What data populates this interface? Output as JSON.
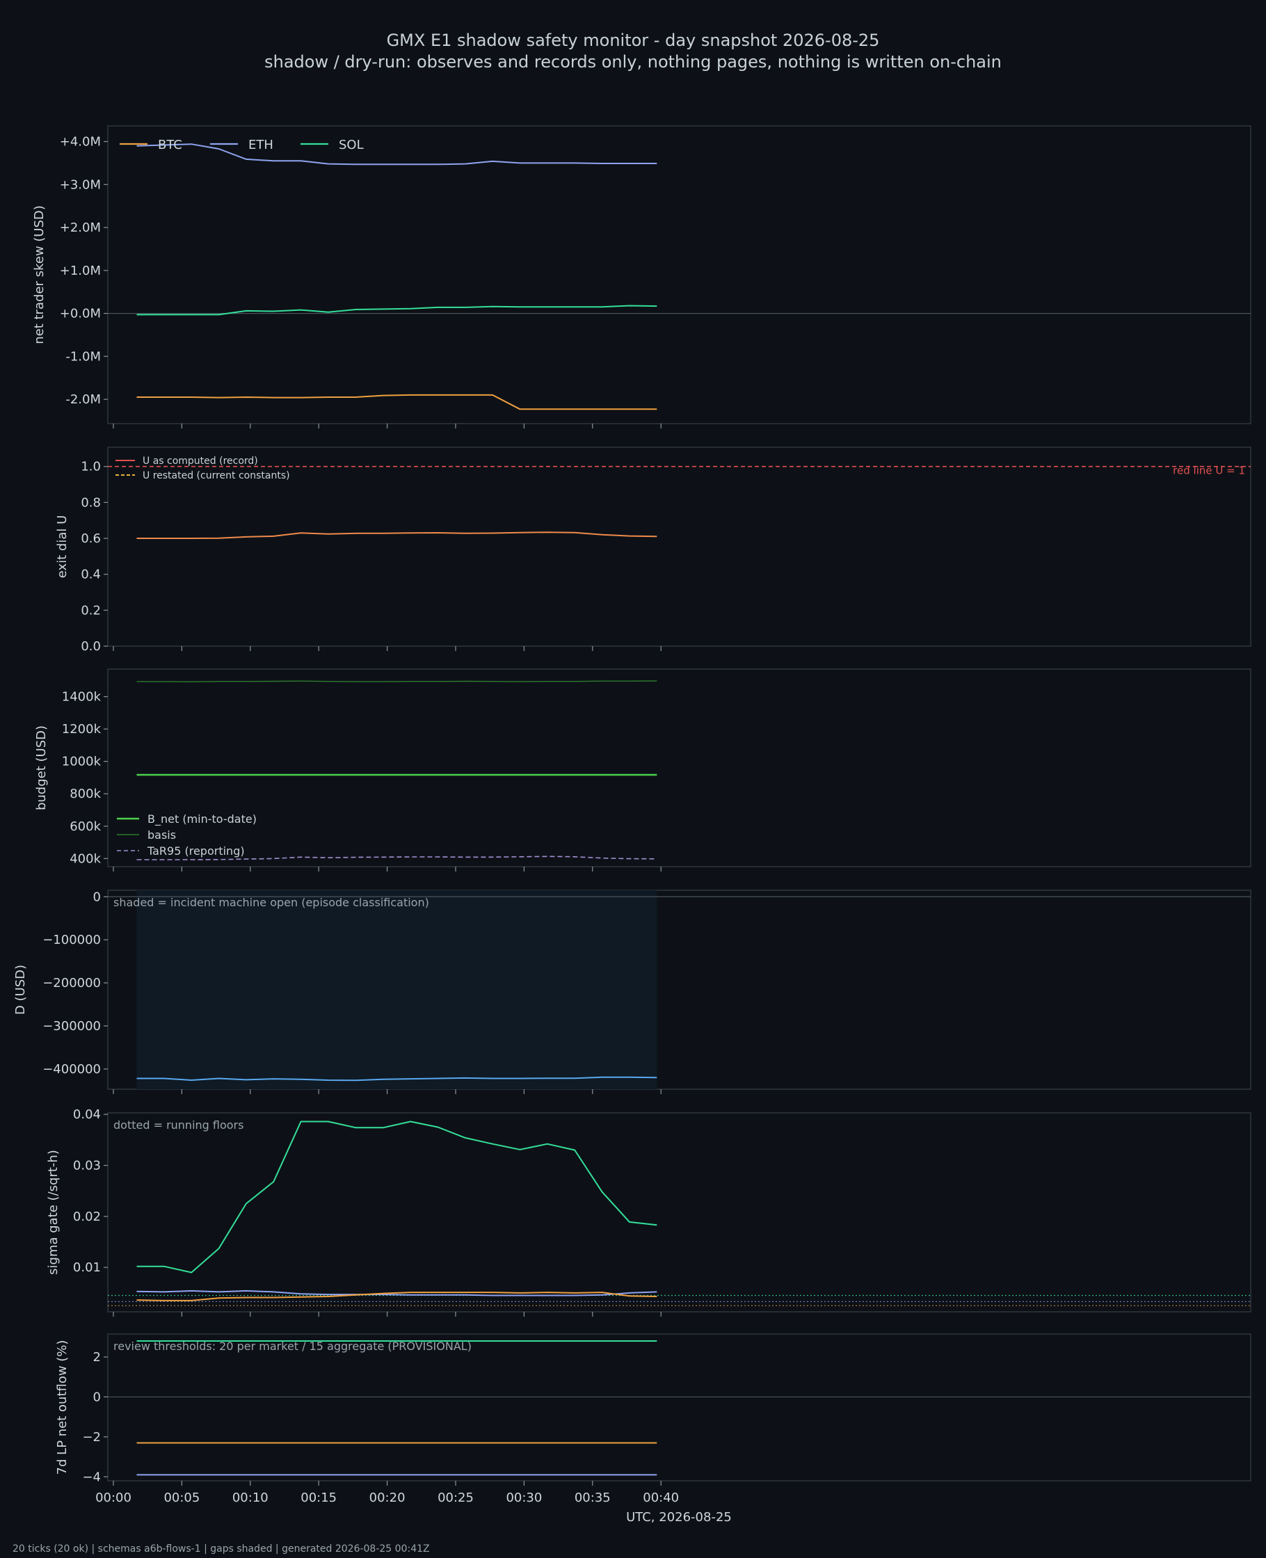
{
  "title": "GMX E1 shadow safety monitor - day snapshot 2026-08-25",
  "subtitle": "shadow / dry-run: observes and records only, nothing pages, nothing is written on-chain",
  "footer": "20 ticks (20 ok) | schemas a6b-flows-1 | gaps shaded | generated 2026-08-25 00:41Z",
  "colors": {
    "background": "#0d1117",
    "panel_border": "#30363d",
    "btc": "#f0a040",
    "eth": "#8fa4f0",
    "sol": "#35e09a",
    "u_record": "#e15050",
    "u_restated": "#e5b53a",
    "u_line": "#f08a4b",
    "b_net": "#4cd14c",
    "basis": "#2f7a2f",
    "tar95": "#a58fd6",
    "d_line": "#5aa8f0",
    "incident_shade": "#0f1a24"
  },
  "chart_data": [
    {
      "type": "line",
      "ylabel": "net trader skew (USD)",
      "ylim": [
        -2.5,
        4.3
      ],
      "yticks": [
        4,
        3,
        2,
        1,
        0,
        -1,
        -2
      ],
      "ytick_labels": [
        "+4.0M",
        "+3.0M",
        "+2.0M",
        "+1.0M",
        "+0.0M",
        "-1.0M",
        "-2.0M"
      ],
      "zero_line": true,
      "legend": "top-left",
      "x_minutes": [
        1.7,
        3.7,
        5.7,
        7.7,
        9.7,
        11.7,
        13.7,
        15.7,
        17.7,
        19.7,
        21.7,
        23.7,
        25.7,
        27.7,
        29.7,
        31.7,
        33.7,
        35.7,
        37.7,
        39.7
      ],
      "series": [
        {
          "name": "BTC",
          "color": "#f0a040",
          "style": "solid",
          "values": [
            -1.95,
            -1.95,
            -1.95,
            -1.96,
            -1.95,
            -1.96,
            -1.96,
            -1.95,
            -1.95,
            -1.91,
            -1.9,
            -1.9,
            -1.9,
            -1.9,
            -2.23,
            -2.23,
            -2.23,
            -2.23,
            -2.23,
            -2.23
          ]
        },
        {
          "name": "ETH",
          "color": "#8fa4f0",
          "style": "solid",
          "values": [
            3.9,
            3.92,
            3.94,
            3.83,
            3.59,
            3.55,
            3.55,
            3.48,
            3.47,
            3.47,
            3.47,
            3.47,
            3.48,
            3.54,
            3.5,
            3.5,
            3.5,
            3.49,
            3.49,
            3.49
          ]
        },
        {
          "name": "SOL",
          "color": "#35e09a",
          "style": "solid",
          "values": [
            -0.03,
            -0.03,
            -0.03,
            -0.03,
            0.06,
            0.05,
            0.08,
            0.03,
            0.09,
            0.1,
            0.11,
            0.14,
            0.14,
            0.16,
            0.15,
            0.15,
            0.15,
            0.15,
            0.18,
            0.17
          ]
        }
      ]
    },
    {
      "type": "line",
      "ylabel": "exit dial U",
      "ylim": [
        0,
        1.08
      ],
      "yticks": [
        0.0,
        0.2,
        0.4,
        0.6,
        0.8,
        1.0
      ],
      "ytick_labels": [
        "0.0",
        "0.2",
        "0.4",
        "0.6",
        "0.8",
        "1.0"
      ],
      "legend": "top-left",
      "hline": {
        "value": 1.0,
        "label": "red line U = 1",
        "color": "#e15050"
      },
      "legend_entries": [
        {
          "name": "U as computed (record)",
          "color": "#e15050",
          "style": "solid"
        },
        {
          "name": "U restated (current constants)",
          "color": "#e5b53a",
          "style": "dashed"
        }
      ],
      "x_minutes": [
        1.7,
        3.7,
        5.7,
        7.7,
        9.7,
        11.7,
        13.7,
        15.7,
        17.7,
        19.7,
        21.7,
        23.7,
        25.7,
        27.7,
        29.7,
        31.7,
        33.7,
        35.7,
        37.7,
        39.7
      ],
      "series": [
        {
          "color": "#f08a4b",
          "style": "solid",
          "values": [
            0.6,
            0.6,
            0.6,
            0.601,
            0.608,
            0.612,
            0.63,
            0.624,
            0.628,
            0.628,
            0.63,
            0.631,
            0.628,
            0.629,
            0.632,
            0.634,
            0.632,
            0.62,
            0.613,
            0.611
          ]
        }
      ]
    },
    {
      "type": "line",
      "ylabel": "budget (USD)",
      "ylim": [
        350,
        1570
      ],
      "yticks": [
        400,
        600,
        800,
        1000,
        1200,
        1400
      ],
      "ytick_labels": [
        "400k",
        "600k",
        "800k",
        "1000k",
        "1200k",
        "1400k"
      ],
      "legend": "lower-left",
      "x_minutes": [
        1.7,
        3.7,
        5.7,
        7.7,
        9.7,
        11.7,
        13.7,
        15.7,
        17.7,
        19.7,
        21.7,
        23.7,
        25.7,
        27.7,
        29.7,
        31.7,
        33.7,
        35.7,
        37.7,
        39.7
      ],
      "series": [
        {
          "name": "B_net (min-to-date)",
          "color": "#4cd14c",
          "style": "solid",
          "width": 2.4,
          "values": [
            917,
            917,
            917,
            917,
            917,
            917,
            917,
            917,
            917,
            917,
            917,
            917,
            917,
            917,
            917,
            917,
            917,
            917,
            917,
            917
          ]
        },
        {
          "name": "basis",
          "color": "#2f7a2f",
          "style": "solid",
          "width": 1.4,
          "values": [
            1493,
            1493,
            1492,
            1494,
            1494,
            1495,
            1496,
            1494,
            1493,
            1493,
            1494,
            1494,
            1495,
            1494,
            1493,
            1494,
            1494,
            1496,
            1496,
            1497
          ]
        },
        {
          "name": "TaR95 (reporting)",
          "color": "#a58fd6",
          "style": "dashed",
          "width": 1.6,
          "values": [
            393,
            393,
            393,
            394,
            397,
            400,
            409,
            405,
            408,
            409,
            410,
            410,
            409,
            409,
            411,
            413,
            411,
            403,
            399,
            398
          ]
        }
      ]
    },
    {
      "type": "line",
      "ylabel": "D (USD)",
      "ylim": [
        -447000,
        15000
      ],
      "yticks": [
        0,
        -100000,
        -200000,
        -300000,
        -400000
      ],
      "ytick_labels": [
        "0",
        "−100000",
        "−200000",
        "−300000",
        "−400000"
      ],
      "zero_line": true,
      "note": "shaded = incident machine open (episode classification)",
      "shade_x": [
        1.7,
        39.7
      ],
      "x_minutes": [
        1.7,
        3.7,
        5.7,
        7.7,
        9.7,
        11.7,
        13.7,
        15.7,
        17.7,
        19.7,
        21.7,
        23.7,
        25.7,
        27.7,
        29.7,
        31.7,
        33.7,
        35.7,
        37.7,
        39.7
      ],
      "series": [
        {
          "color": "#5aa8f0",
          "style": "solid",
          "values": [
            -422000,
            -422000,
            -426000,
            -422000,
            -425000,
            -423000,
            -424000,
            -426000,
            -426500,
            -424000,
            -423000,
            -422000,
            -421000,
            -422000,
            -422000,
            -421500,
            -421500,
            -419000,
            -419000,
            -420000
          ]
        }
      ]
    },
    {
      "type": "line",
      "ylabel": "sigma gate (/sqrt-h)",
      "ylim": [
        0.0013,
        0.0403
      ],
      "yticks": [
        0.01,
        0.02,
        0.03,
        0.04
      ],
      "ytick_labels": [
        "0.01",
        "0.02",
        "0.03",
        "0.04"
      ],
      "note": "dotted = running floors",
      "floors": [
        {
          "value": 0.0045,
          "color": "#35e09a"
        },
        {
          "value": 0.0033,
          "color": "#8fa4f0"
        },
        {
          "value": 0.0025,
          "color": "#f0a040"
        }
      ],
      "x_minutes": [
        1.7,
        3.7,
        5.7,
        7.7,
        9.7,
        11.7,
        13.7,
        15.7,
        17.7,
        19.7,
        21.7,
        23.7,
        25.7,
        27.7,
        29.7,
        31.7,
        33.7,
        35.7,
        37.7,
        39.7
      ],
      "series": [
        {
          "color": "#35e09a",
          "style": "solid",
          "values": [
            0.0102,
            0.0102,
            0.009,
            0.0137,
            0.0225,
            0.0268,
            0.0386,
            0.0386,
            0.0374,
            0.0374,
            0.0386,
            0.0375,
            0.0354,
            0.0342,
            0.0331,
            0.0342,
            0.033,
            0.0248,
            0.0189,
            0.0183
          ]
        },
        {
          "color": "#8fa4f0",
          "style": "solid",
          "values": [
            0.0053,
            0.0052,
            0.0054,
            0.0052,
            0.0054,
            0.0052,
            0.0048,
            0.0047,
            0.0047,
            0.0047,
            0.0046,
            0.0046,
            0.0046,
            0.0045,
            0.0045,
            0.0045,
            0.0045,
            0.0046,
            0.005,
            0.0052
          ]
        },
        {
          "color": "#f0a040",
          "style": "solid",
          "values": [
            0.0036,
            0.0035,
            0.0035,
            0.004,
            0.0041,
            0.0041,
            0.0042,
            0.0043,
            0.0046,
            0.0049,
            0.0051,
            0.0051,
            0.0051,
            0.0051,
            0.005,
            0.0051,
            0.005,
            0.0051,
            0.0044,
            0.0043
          ]
        }
      ]
    },
    {
      "type": "line",
      "ylabel": "7d LP net outflow (%)",
      "ylim": [
        -4.2,
        3.15
      ],
      "yticks": [
        2,
        0,
        -2,
        -4
      ],
      "ytick_labels": [
        "2",
        "0",
        "−2",
        "−4"
      ],
      "zero_line": true,
      "note": "review thresholds: 20 per market / 15 aggregate (PROVISIONAL)",
      "xlabel": "UTC, 2026-08-25",
      "x_tick_labels": [
        "00:00",
        "00:05",
        "00:10",
        "00:15",
        "00:20",
        "00:25",
        "00:30",
        "00:35",
        "00:40"
      ],
      "x_minutes": [
        1.7,
        3.7,
        5.7,
        7.7,
        9.7,
        11.7,
        13.7,
        15.7,
        17.7,
        19.7,
        21.7,
        23.7,
        25.7,
        27.7,
        29.7,
        31.7,
        33.7,
        35.7,
        37.7,
        39.7
      ],
      "series": [
        {
          "color": "#35e09a",
          "style": "solid",
          "values": [
            2.8,
            2.8,
            2.8,
            2.8,
            2.8,
            2.8,
            2.8,
            2.8,
            2.8,
            2.8,
            2.8,
            2.8,
            2.8,
            2.8,
            2.8,
            2.8,
            2.8,
            2.8,
            2.8,
            2.8
          ]
        },
        {
          "color": "#f0a040",
          "style": "solid",
          "values": [
            -2.3,
            -2.3,
            -2.3,
            -2.3,
            -2.3,
            -2.3,
            -2.3,
            -2.3,
            -2.3,
            -2.3,
            -2.3,
            -2.3,
            -2.3,
            -2.3,
            -2.3,
            -2.3,
            -2.3,
            -2.3,
            -2.3,
            -2.3
          ]
        },
        {
          "color": "#8fa4f0",
          "style": "solid",
          "values": [
            -3.9,
            -3.9,
            -3.9,
            -3.9,
            -3.9,
            -3.9,
            -3.9,
            -3.9,
            -3.9,
            -3.9,
            -3.9,
            -3.9,
            -3.9,
            -3.9,
            -3.9,
            -3.9,
            -3.9,
            -3.9,
            -3.9,
            -3.9
          ]
        }
      ]
    }
  ]
}
